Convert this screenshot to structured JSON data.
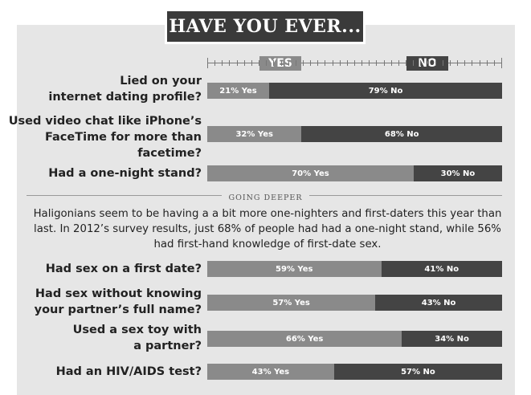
{
  "title": "HAVE YOU EVER...",
  "axis": {
    "yes_label": "YES",
    "no_label": "NO"
  },
  "colors": {
    "yes": "#8a8a8a",
    "no": "#444444",
    "title_bg": "#3a3a3a",
    "panel": "#e6e6e6"
  },
  "section_label": "GOING DEEPER",
  "paragraph": "Haligonians seem to be having a a bit more one-nighters and first-daters this year than last. In 2012’s survey results, just 68% of people had had a one-night stand, while 56% had first-hand knowledge of first-date sex.",
  "chart_data": {
    "type": "bar",
    "orientation": "horizontal",
    "stacked": true,
    "title": "HAVE YOU EVER...",
    "categories": [
      "Lied on your internet dating profile?",
      "Used video chat like iPhone’s FaceTime for more than facetime?",
      "Had a one-night stand?",
      "Had sex on a first date?",
      "Had sex without knowing your partner’s full name?",
      "Used a sex toy with a partner?",
      "Had an HIV/AIDS test?"
    ],
    "series": [
      {
        "name": "YES",
        "values": [
          21,
          32,
          70,
          59,
          57,
          66,
          43
        ]
      },
      {
        "name": "NO",
        "values": [
          79,
          68,
          30,
          41,
          43,
          34,
          57
        ]
      }
    ],
    "xlim": [
      0,
      100
    ],
    "rows": [
      {
        "lines": [
          "Lied on your",
          "internet dating profile?"
        ],
        "yes": 21,
        "no": 79,
        "yes_label": "21% Yes",
        "no_label": "79% No"
      },
      {
        "lines": [
          "Used video chat like iPhone’s",
          "FaceTime for more than",
          "facetime?"
        ],
        "yes": 32,
        "no": 68,
        "yes_label": "32% Yes",
        "no_label": "68% No"
      },
      {
        "lines": [
          "Had a one-night stand?"
        ],
        "yes": 70,
        "no": 30,
        "yes_label": "70% Yes",
        "no_label": "30% No"
      },
      {
        "lines": [
          "Had sex on a first date?"
        ],
        "yes": 59,
        "no": 41,
        "yes_label": "59% Yes",
        "no_label": "41% No"
      },
      {
        "lines": [
          "Had sex without knowing",
          "your partner’s full name?"
        ],
        "yes": 57,
        "no": 43,
        "yes_label": "57% Yes",
        "no_label": "43% No"
      },
      {
        "lines": [
          "Used a sex toy with",
          "a partner?"
        ],
        "yes": 66,
        "no": 34,
        "yes_label": "66% Yes",
        "no_label": "34% No"
      },
      {
        "lines": [
          "Had an HIV/AIDS test?"
        ],
        "yes": 43,
        "no": 57,
        "yes_label": "43% Yes",
        "no_label": "57% No"
      }
    ]
  }
}
